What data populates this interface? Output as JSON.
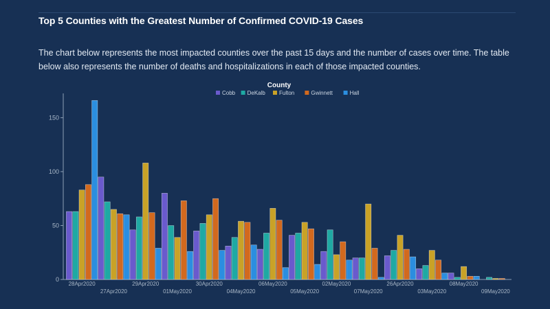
{
  "header": {
    "title": "Top 5 Counties with the Greatest Number of Confirmed COVID-19 Cases",
    "description": "The chart below represents the most impacted counties over the past 15 days and the number of cases over time. The table below also represents the number of deaths and hospitalizations in each of those impacted counties."
  },
  "chart_data": {
    "type": "bar",
    "title": "",
    "xlabel": "",
    "ylabel": "",
    "legend_title": "County",
    "legend_position": "top-center",
    "grid": false,
    "ylim": [
      0,
      170
    ],
    "yticks": [
      0,
      50,
      100,
      150
    ],
    "categories": [
      "28Apr2020",
      "27Apr2020",
      "29Apr2020",
      "01May2020",
      "30Apr2020",
      "04May2020",
      "06May2020",
      "05May2020",
      "02May2020",
      "07May2020",
      "26Apr2020",
      "03May2020",
      "08May2020",
      "09May2020"
    ],
    "series": [
      {
        "name": "Cobb",
        "color": "#6a5acd",
        "values": [
          63,
          95,
          46,
          80,
          45,
          31,
          28,
          41,
          26,
          20,
          22,
          10,
          6,
          0
        ]
      },
      {
        "name": "DeKalb",
        "color": "#1fa9a3",
        "values": [
          63,
          72,
          58,
          50,
          52,
          39,
          43,
          43,
          46,
          20,
          27,
          13,
          2,
          2
        ]
      },
      {
        "name": "Fulton",
        "color": "#c9a227",
        "values": [
          83,
          65,
          108,
          39,
          60,
          54,
          66,
          53,
          23,
          70,
          41,
          27,
          12,
          1
        ]
      },
      {
        "name": "Gwinnett",
        "color": "#d2691e",
        "values": [
          88,
          61,
          62,
          73,
          75,
          53,
          55,
          47,
          35,
          29,
          28,
          18,
          3,
          1
        ]
      },
      {
        "name": "Hall",
        "color": "#2b8ee0",
        "values": [
          166,
          60,
          29,
          26,
          27,
          32,
          11,
          14,
          18,
          2,
          21,
          6,
          3,
          0
        ]
      }
    ]
  }
}
